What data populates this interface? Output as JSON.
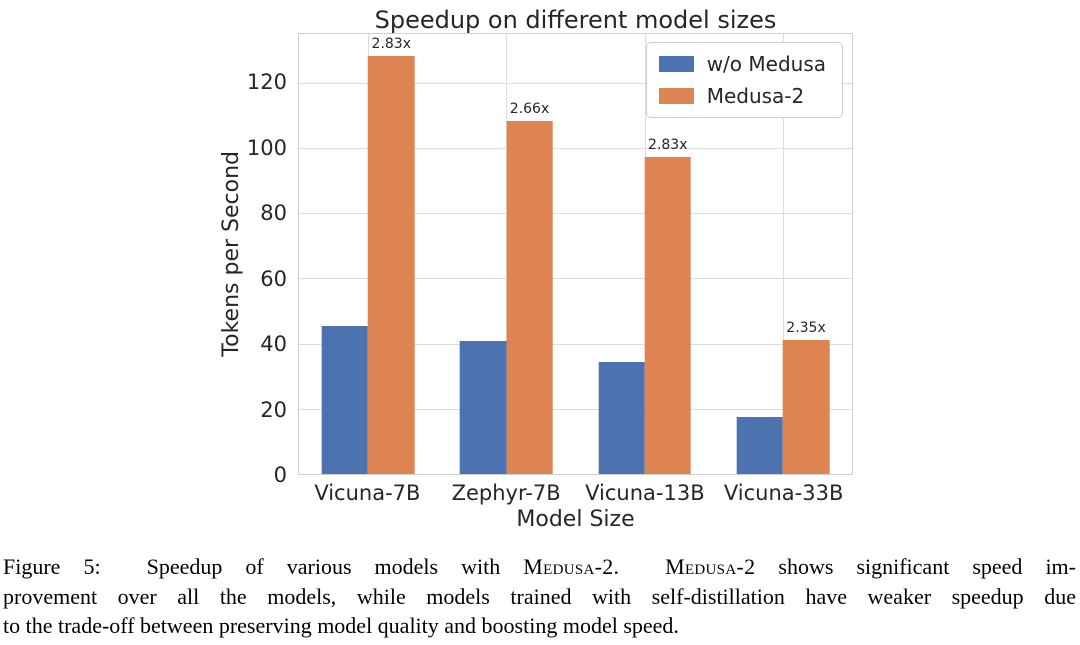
{
  "chart_data": {
    "type": "bar",
    "title": "Speedup on different model sizes",
    "xlabel": "Model Size",
    "ylabel": "Tokens per Second",
    "categories": [
      "Vicuna-7B",
      "Zephyr-7B",
      "Vicuna-13B",
      "Vicuna-33B"
    ],
    "series": [
      {
        "name": "w/o Medusa",
        "color": "#4C72B0",
        "values": [
          45.3,
          40.7,
          34.4,
          17.5
        ]
      },
      {
        "name": "Medusa-2",
        "color": "#DD8452",
        "values": [
          128.4,
          108.3,
          97.3,
          41.2
        ],
        "bar_labels": [
          "2.83x",
          "2.66x",
          "2.83x",
          "2.35x"
        ]
      }
    ],
    "yticks": [
      0,
      20,
      40,
      60,
      80,
      100,
      120
    ],
    "ylim": [
      0,
      135
    ],
    "grid": true,
    "grid_color": "#dcdcdc",
    "frame_color": "#cfcfcf",
    "legend_position": "upper right"
  },
  "caption": {
    "line1": [
      {
        "t": "Figure 5:  Speedup of various models with "
      },
      {
        "t": "Medusa-2",
        "sc": true
      },
      {
        "t": ".  "
      },
      {
        "t": "Medusa-2",
        "sc": true
      },
      {
        "t": " shows significant speed im-"
      }
    ],
    "line2": "provement over all the models, while models trained with self-distillation have weaker speedup due",
    "line3": "to the trade-off between preserving model quality and boosting model speed."
  }
}
